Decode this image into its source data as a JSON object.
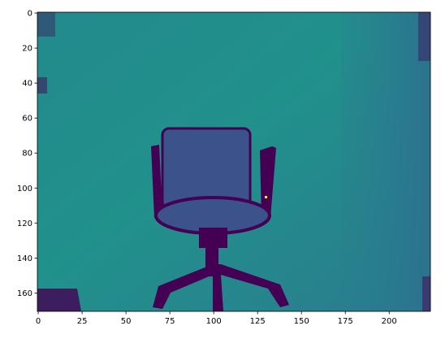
{
  "chart_data": {
    "type": "image",
    "colormap": "viridis",
    "xlim": [
      -0.5,
      223.5
    ],
    "ylim": [
      170.5,
      -0.5
    ],
    "xticks": [
      0,
      25,
      50,
      75,
      100,
      125,
      150,
      175,
      200
    ],
    "yticks": [
      0,
      20,
      40,
      60,
      80,
      100,
      120,
      140,
      160
    ]
  }
}
